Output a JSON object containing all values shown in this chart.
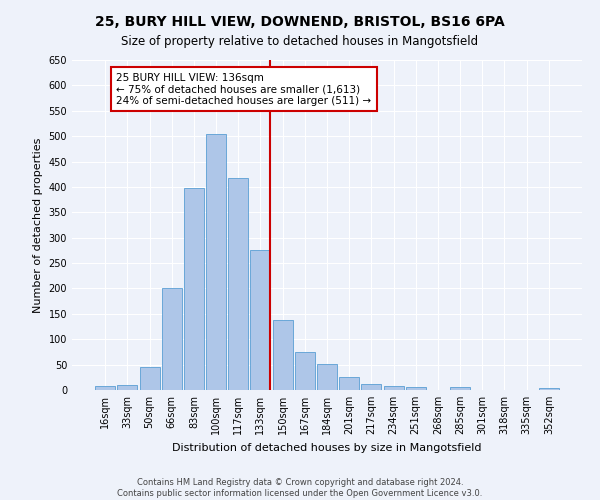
{
  "title": "25, BURY HILL VIEW, DOWNEND, BRISTOL, BS16 6PA",
  "subtitle": "Size of property relative to detached houses in Mangotsfield",
  "xlabel": "Distribution of detached houses by size in Mangotsfield",
  "ylabel": "Number of detached properties",
  "footer_line1": "Contains HM Land Registry data © Crown copyright and database right 2024.",
  "footer_line2": "Contains public sector information licensed under the Open Government Licence v3.0.",
  "bar_labels": [
    "16sqm",
    "33sqm",
    "50sqm",
    "66sqm",
    "83sqm",
    "100sqm",
    "117sqm",
    "133sqm",
    "150sqm",
    "167sqm",
    "184sqm",
    "201sqm",
    "217sqm",
    "234sqm",
    "251sqm",
    "268sqm",
    "285sqm",
    "301sqm",
    "318sqm",
    "335sqm",
    "352sqm"
  ],
  "bar_values": [
    8,
    10,
    45,
    200,
    398,
    505,
    418,
    275,
    138,
    75,
    52,
    25,
    12,
    8,
    5,
    0,
    5,
    0,
    0,
    0,
    3
  ],
  "bar_color": "#aec6e8",
  "bar_edge_color": "#5a9fd4",
  "ylim": [
    0,
    650
  ],
  "yticks": [
    0,
    50,
    100,
    150,
    200,
    250,
    300,
    350,
    400,
    450,
    500,
    550,
    600,
    650
  ],
  "property_line_bin": 7,
  "annotation_text_line1": "25 BURY HILL VIEW: 136sqm",
  "annotation_text_line2": "← 75% of detached houses are smaller (1,613)",
  "annotation_text_line3": "24% of semi-detached houses are larger (511) →",
  "annotation_box_color": "#ffffff",
  "annotation_box_edge": "#cc0000",
  "vertical_line_color": "#cc0000",
  "background_color": "#eef2fa",
  "grid_color": "#ffffff",
  "title_fontsize": 10,
  "subtitle_fontsize": 8.5,
  "axis_label_fontsize": 8,
  "tick_fontsize": 7,
  "annotation_fontsize": 7.5,
  "footer_fontsize": 6
}
